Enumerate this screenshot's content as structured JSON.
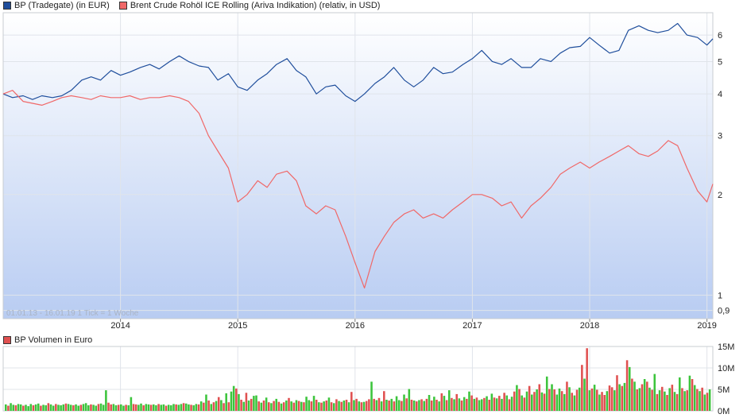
{
  "chart_data": [
    {
      "type": "line",
      "scale": "log",
      "legend_placement": "top-left",
      "grid": true,
      "series": [
        {
          "name": "BP (Tradegate) (in EUR)",
          "color": "#1f4e9c",
          "x": [
            2013.0,
            2013.08,
            2013.17,
            2013.25,
            2013.33,
            2013.42,
            2013.5,
            2013.58,
            2013.67,
            2013.75,
            2013.83,
            2013.92,
            2014.0,
            2014.08,
            2014.17,
            2014.25,
            2014.33,
            2014.42,
            2014.5,
            2014.58,
            2014.67,
            2014.75,
            2014.83,
            2014.92,
            2015.0,
            2015.08,
            2015.17,
            2015.25,
            2015.33,
            2015.42,
            2015.5,
            2015.58,
            2015.67,
            2015.75,
            2015.83,
            2015.92,
            2016.0,
            2016.08,
            2016.17,
            2016.25,
            2016.33,
            2016.42,
            2016.5,
            2016.58,
            2016.67,
            2016.75,
            2016.83,
            2016.92,
            2017.0,
            2017.08,
            2017.17,
            2017.25,
            2017.33,
            2017.42,
            2017.5,
            2017.58,
            2017.67,
            2017.75,
            2017.83,
            2017.92,
            2018.0,
            2018.08,
            2018.17,
            2018.25,
            2018.33,
            2018.42,
            2018.5,
            2018.58,
            2018.67,
            2018.75,
            2018.83,
            2018.92,
            2019.0,
            2019.05
          ],
          "values": [
            4.0,
            3.9,
            3.95,
            3.85,
            3.95,
            3.9,
            3.95,
            4.1,
            4.4,
            4.5,
            4.4,
            4.7,
            4.55,
            4.65,
            4.8,
            4.9,
            4.75,
            5.0,
            5.2,
            5.0,
            4.85,
            4.8,
            4.4,
            4.6,
            4.2,
            4.1,
            4.4,
            4.6,
            4.9,
            5.1,
            4.7,
            4.5,
            4.0,
            4.2,
            4.25,
            3.95,
            3.8,
            4.0,
            4.3,
            4.5,
            4.8,
            4.4,
            4.2,
            4.4,
            4.8,
            4.6,
            4.65,
            4.9,
            5.1,
            5.4,
            5.0,
            4.9,
            5.1,
            4.8,
            4.8,
            5.1,
            5.0,
            5.3,
            5.5,
            5.55,
            5.9,
            5.6,
            5.3,
            5.4,
            6.2,
            6.4,
            6.2,
            6.1,
            6.2,
            6.5,
            6.0,
            5.9,
            5.6,
            5.85
          ]
        },
        {
          "name": "Brent Crude Rohöl ICE Rolling (Ariva Indikation) (relativ, in USD)",
          "color": "#f06868",
          "x": [
            2013.0,
            2013.08,
            2013.17,
            2013.25,
            2013.33,
            2013.42,
            2013.5,
            2013.58,
            2013.67,
            2013.75,
            2013.83,
            2013.92,
            2014.0,
            2014.08,
            2014.17,
            2014.25,
            2014.33,
            2014.42,
            2014.5,
            2014.58,
            2014.67,
            2014.75,
            2014.83,
            2014.92,
            2015.0,
            2015.08,
            2015.17,
            2015.25,
            2015.33,
            2015.42,
            2015.5,
            2015.58,
            2015.67,
            2015.75,
            2015.83,
            2015.92,
            2016.0,
            2016.08,
            2016.17,
            2016.25,
            2016.33,
            2016.42,
            2016.5,
            2016.58,
            2016.67,
            2016.75,
            2016.83,
            2016.92,
            2017.0,
            2017.08,
            2017.17,
            2017.25,
            2017.33,
            2017.42,
            2017.5,
            2017.58,
            2017.67,
            2017.75,
            2017.83,
            2017.92,
            2018.0,
            2018.08,
            2018.17,
            2018.25,
            2018.33,
            2018.42,
            2018.5,
            2018.58,
            2018.67,
            2018.75,
            2018.83,
            2018.92,
            2019.0,
            2019.05
          ],
          "values": [
            4.0,
            4.1,
            3.8,
            3.75,
            3.7,
            3.8,
            3.9,
            3.95,
            3.9,
            3.85,
            3.95,
            3.9,
            3.9,
            3.95,
            3.85,
            3.9,
            3.9,
            3.95,
            3.9,
            3.8,
            3.5,
            3.0,
            2.7,
            2.4,
            1.9,
            2.0,
            2.2,
            2.1,
            2.3,
            2.35,
            2.2,
            1.85,
            1.75,
            1.85,
            1.8,
            1.5,
            1.25,
            1.05,
            1.35,
            1.5,
            1.65,
            1.75,
            1.8,
            1.7,
            1.75,
            1.7,
            1.8,
            1.9,
            2.0,
            2.0,
            1.95,
            1.85,
            1.9,
            1.7,
            1.85,
            1.95,
            2.1,
            2.3,
            2.4,
            2.5,
            2.4,
            2.5,
            2.6,
            2.7,
            2.8,
            2.65,
            2.6,
            2.7,
            2.9,
            2.8,
            2.4,
            2.05,
            1.9,
            2.15
          ]
        }
      ],
      "y_ticks": [
        "6",
        "5",
        "4",
        "3",
        "2",
        "1",
        "0,9"
      ],
      "y_tick_values": [
        6,
        5,
        4,
        3,
        2,
        1,
        0.9
      ],
      "x_ticks": [
        "2014",
        "2015",
        "2016",
        "2017",
        "2018",
        "2019"
      ],
      "x_tick_values": [
        2014,
        2015,
        2016,
        2017,
        2018,
        2019
      ],
      "xlim": [
        2013.0,
        2019.05
      ],
      "ylim": [
        0.85,
        7.0
      ],
      "footer": "01.01.13 - 16.01.19    1 Tick = 1 Woche"
    },
    {
      "type": "bar",
      "legend_placement": "top-left",
      "grid": true,
      "series": [
        {
          "name": "BP Volumen in Euro",
          "color_up": "#3cc43c",
          "color_down": "#e05050"
        }
      ],
      "unit": "M",
      "values_m": [
        1.5,
        1.2,
        1.8,
        1.4,
        1.3,
        1.6,
        1.5,
        1.2,
        1.4,
        1.1,
        1.6,
        1.3,
        1.5,
        1.7,
        1.2,
        1.4,
        1.3,
        1.8,
        1.5,
        1.2,
        1.6,
        1.4,
        1.3,
        1.5,
        1.7,
        1.6,
        1.4,
        1.3,
        1.5,
        1.2,
        1.4,
        1.6,
        1.8,
        1.3,
        1.5,
        1.4,
        1.2,
        1.6,
        1.7,
        1.4,
        4.8,
        1.9,
        1.5,
        1.6,
        1.3,
        1.4,
        1.5,
        1.2,
        1.4,
        1.3,
        3.2,
        1.6,
        1.5,
        1.4,
        1.7,
        1.3,
        1.6,
        1.5,
        1.4,
        1.5,
        1.3,
        1.6,
        1.4,
        1.5,
        1.2,
        1.4,
        1.3,
        1.6,
        1.5,
        1.4,
        1.6,
        1.8,
        1.7,
        1.5,
        1.4,
        1.3,
        1.6,
        1.5,
        2.2,
        1.9,
        3.8,
        2.4,
        1.6,
        2.0,
        2.3,
        3.2,
        2.5,
        1.8,
        4.1,
        2.0,
        4.5,
        5.8,
        5.2,
        3.9,
        2.6,
        2.1,
        4.2,
        2.4,
        2.8,
        3.5,
        3.6,
        2.2,
        1.9,
        2.4,
        3.1,
        2.0,
        1.8,
        2.3,
        2.8,
        2.1,
        1.7,
        2.0,
        2.4,
        3.0,
        2.2,
        1.9,
        2.5,
        2.3,
        2.1,
        2.0,
        3.3,
        2.5,
        2.2,
        3.5,
        2.6,
        2.0,
        1.9,
        2.2,
        2.4,
        3.1,
        2.0,
        1.8,
        2.7,
        2.3,
        2.1,
        2.4,
        2.6,
        2.0,
        4.4,
        2.5,
        2.8,
        2.2,
        2.0,
        2.1,
        2.3,
        2.7,
        6.8,
        2.8,
        2.5,
        3.0,
        2.2,
        4.6,
        2.6,
        2.4,
        2.8,
        2.2,
        3.4,
        2.5,
        2.3,
        3.8,
        2.9,
        5.1,
        2.6,
        2.4,
        2.2,
        2.5,
        2.7,
        2.3,
        2.8,
        3.7,
        2.4,
        3.3,
        2.6,
        2.2,
        4.1,
        3.5,
        2.5,
        4.8,
        3.0,
        2.7,
        3.9,
        2.9,
        2.4,
        3.2,
        2.8,
        4.5,
        3.6,
        2.8,
        3.1,
        2.5,
        2.7,
        3.0,
        3.4,
        2.6,
        4.0,
        3.1,
        2.9,
        3.5,
        2.8,
        4.2,
        3.6,
        2.7,
        3.3,
        4.5,
        6.0,
        5.1,
        3.6,
        3.1,
        4.5,
        5.8,
        3.8,
        4.4,
        5.0,
        6.2,
        4.3,
        4.0,
        8.0,
        5.1,
        6.2,
        5.0,
        3.8,
        5.2,
        4.6,
        3.9,
        6.8,
        5.5,
        4.2,
        3.6,
        4.9,
        5.4,
        10.7,
        7.5,
        14.6,
        4.8,
        5.2,
        6.1,
        4.9,
        3.8,
        4.4,
        3.7,
        4.6,
        5.9,
        5.5,
        4.8,
        8.3,
        6.2,
        5.8,
        6.5,
        11.8,
        10.2,
        7.5,
        6.8,
        5.0,
        5.3,
        6.2,
        7.4,
        6.8,
        5.4,
        4.9,
        8.6,
        3.9,
        4.8,
        5.6,
        4.5,
        3.7,
        5.3,
        6.1,
        4.4,
        3.9,
        7.8,
        5.3,
        4.6,
        4.8,
        8.2,
        7.4,
        6.0,
        5.1,
        4.6,
        5.4,
        3.8,
        4.2,
        5.0
      ],
      "direction_up": [
        1,
        0,
        1,
        1,
        0,
        1,
        1,
        0,
        1,
        1,
        1,
        0,
        1,
        1,
        0,
        1,
        1,
        0,
        1,
        1,
        0,
        1,
        1,
        1,
        0,
        1,
        1,
        0,
        1,
        1,
        0,
        1,
        1,
        1,
        0,
        1,
        1,
        0,
        1,
        1,
        1,
        0,
        0,
        1,
        1,
        0,
        1,
        1,
        0,
        1,
        1,
        0,
        0,
        1,
        1,
        0,
        1,
        1,
        0,
        1,
        1,
        0,
        1,
        1,
        0,
        1,
        1,
        1,
        0,
        1,
        1,
        0,
        1,
        1,
        0,
        1,
        1,
        0,
        1,
        0,
        1,
        0,
        1,
        0,
        1,
        0,
        1,
        0,
        1,
        0,
        1,
        1,
        0,
        1,
        0,
        1,
        0,
        1,
        0,
        1,
        1,
        0,
        1,
        0,
        1,
        0,
        1,
        0,
        1,
        0,
        1,
        0,
        1,
        0,
        1,
        0,
        1,
        0,
        1,
        0,
        1,
        1,
        0,
        1,
        0,
        1,
        0,
        1,
        0,
        1,
        0,
        1,
        0,
        1,
        0,
        1,
        0,
        1,
        0,
        1,
        0,
        1,
        0,
        1,
        0,
        0,
        1,
        0,
        1,
        0,
        1,
        0,
        1,
        0,
        1,
        0,
        1,
        1,
        0,
        1,
        0,
        1,
        0,
        1,
        0,
        1,
        0,
        1,
        0,
        1,
        0,
        1,
        0,
        1,
        0,
        1,
        0,
        1,
        0,
        1,
        0,
        1,
        0,
        1,
        0,
        1,
        0,
        1,
        0,
        1,
        1,
        0,
        1,
        0,
        1,
        0,
        1,
        0,
        1,
        0,
        1,
        0,
        1,
        0,
        1,
        0,
        1,
        0,
        1,
        0,
        1,
        0,
        1,
        0,
        1,
        0,
        1,
        0,
        1,
        0,
        1,
        1,
        0,
        1,
        0,
        1,
        0,
        1,
        0,
        1,
        0,
        1,
        0,
        1,
        0,
        1,
        0,
        1,
        0,
        0,
        1,
        0,
        0,
        1,
        0,
        1,
        0,
        1,
        0,
        1,
        0,
        1,
        0,
        1,
        0,
        1,
        0,
        1,
        0,
        1,
        0,
        1,
        0,
        1,
        0,
        1,
        0,
        1,
        0,
        1,
        0,
        1,
        0,
        1,
        0,
        1,
        0,
        1,
        0,
        1,
        0,
        1,
        0,
        1,
        0,
        1,
        0,
        1,
        0,
        1,
        0,
        1,
        0,
        1,
        0
      ],
      "y_ticks": [
        "15M",
        "10M",
        "5M",
        "0M"
      ],
      "y_tick_values": [
        15,
        10,
        5,
        0
      ],
      "ylim": [
        0,
        15
      ]
    }
  ],
  "colors": {
    "grid": "#e0e4ea",
    "frame": "#c8ccd2",
    "area_top": "#ffffff",
    "area_bottom": "#b8ccf2"
  }
}
